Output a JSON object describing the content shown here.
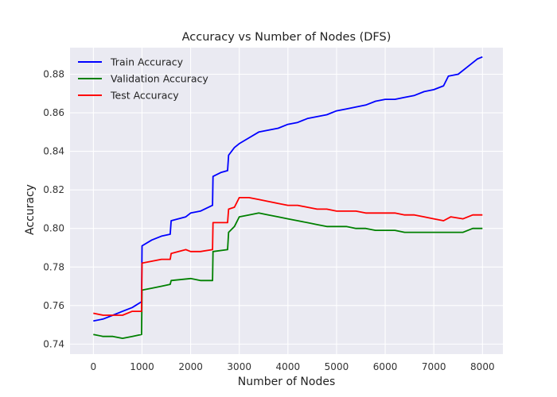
{
  "chart_data": {
    "type": "line",
    "title": "Accuracy vs Number of Nodes (DFS)",
    "xlabel": "Number of Nodes",
    "ylabel": "Accuracy",
    "xlim": [
      -480,
      8420
    ],
    "ylim": [
      0.7348,
      0.8938
    ],
    "xticks": [
      0,
      1000,
      2000,
      3000,
      4000,
      5000,
      6000,
      7000,
      8000
    ],
    "yticks": [
      0.74,
      0.76,
      0.78,
      0.8,
      0.82,
      0.84,
      0.86,
      0.88
    ],
    "ytick_labels": [
      "0.74",
      "0.76",
      "0.78",
      "0.80",
      "0.82",
      "0.84",
      "0.86",
      "0.88"
    ],
    "grid": true,
    "background": "#eaeaf2",
    "legend_position": "top-left",
    "series": [
      {
        "name": "Train Accuracy",
        "color": "#0000ff",
        "points": [
          [
            0,
            0.752
          ],
          [
            200,
            0.753
          ],
          [
            400,
            0.755
          ],
          [
            600,
            0.757
          ],
          [
            800,
            0.759
          ],
          [
            990,
            0.762
          ],
          [
            1000,
            0.791
          ],
          [
            1200,
            0.794
          ],
          [
            1400,
            0.796
          ],
          [
            1580,
            0.797
          ],
          [
            1600,
            0.804
          ],
          [
            1900,
            0.806
          ],
          [
            2000,
            0.808
          ],
          [
            2200,
            0.809
          ],
          [
            2450,
            0.812
          ],
          [
            2460,
            0.827
          ],
          [
            2620,
            0.829
          ],
          [
            2760,
            0.83
          ],
          [
            2780,
            0.838
          ],
          [
            2900,
            0.842
          ],
          [
            3000,
            0.844
          ],
          [
            3200,
            0.847
          ],
          [
            3400,
            0.85
          ],
          [
            3600,
            0.851
          ],
          [
            3800,
            0.852
          ],
          [
            4000,
            0.854
          ],
          [
            4200,
            0.855
          ],
          [
            4400,
            0.857
          ],
          [
            4600,
            0.858
          ],
          [
            4800,
            0.859
          ],
          [
            5000,
            0.861
          ],
          [
            5200,
            0.862
          ],
          [
            5400,
            0.863
          ],
          [
            5600,
            0.864
          ],
          [
            5800,
            0.866
          ],
          [
            6000,
            0.867
          ],
          [
            6200,
            0.867
          ],
          [
            6400,
            0.868
          ],
          [
            6600,
            0.869
          ],
          [
            6800,
            0.871
          ],
          [
            7000,
            0.872
          ],
          [
            7200,
            0.874
          ],
          [
            7300,
            0.879
          ],
          [
            7500,
            0.88
          ],
          [
            7700,
            0.884
          ],
          [
            7900,
            0.888
          ],
          [
            8000,
            0.889
          ]
        ]
      },
      {
        "name": "Validation Accuracy",
        "color": "#008000",
        "points": [
          [
            0,
            0.745
          ],
          [
            200,
            0.744
          ],
          [
            400,
            0.744
          ],
          [
            600,
            0.743
          ],
          [
            800,
            0.744
          ],
          [
            990,
            0.745
          ],
          [
            1000,
            0.768
          ],
          [
            1200,
            0.769
          ],
          [
            1400,
            0.77
          ],
          [
            1580,
            0.771
          ],
          [
            1600,
            0.773
          ],
          [
            2000,
            0.774
          ],
          [
            2200,
            0.773
          ],
          [
            2450,
            0.773
          ],
          [
            2460,
            0.788
          ],
          [
            2760,
            0.789
          ],
          [
            2780,
            0.798
          ],
          [
            2900,
            0.801
          ],
          [
            3000,
            0.806
          ],
          [
            3200,
            0.807
          ],
          [
            3400,
            0.808
          ],
          [
            3600,
            0.807
          ],
          [
            3800,
            0.806
          ],
          [
            4000,
            0.805
          ],
          [
            4200,
            0.804
          ],
          [
            4400,
            0.803
          ],
          [
            4600,
            0.802
          ],
          [
            4800,
            0.801
          ],
          [
            5000,
            0.801
          ],
          [
            5200,
            0.801
          ],
          [
            5400,
            0.8
          ],
          [
            5600,
            0.8
          ],
          [
            5800,
            0.799
          ],
          [
            6000,
            0.799
          ],
          [
            6200,
            0.799
          ],
          [
            6400,
            0.798
          ],
          [
            6600,
            0.798
          ],
          [
            6800,
            0.798
          ],
          [
            7000,
            0.798
          ],
          [
            7200,
            0.798
          ],
          [
            7400,
            0.798
          ],
          [
            7600,
            0.798
          ],
          [
            7800,
            0.8
          ],
          [
            8000,
            0.8
          ]
        ]
      },
      {
        "name": "Test Accuracy",
        "color": "#ff0000",
        "points": [
          [
            0,
            0.756
          ],
          [
            200,
            0.755
          ],
          [
            400,
            0.755
          ],
          [
            600,
            0.755
          ],
          [
            800,
            0.757
          ],
          [
            990,
            0.757
          ],
          [
            1000,
            0.782
          ],
          [
            1200,
            0.783
          ],
          [
            1400,
            0.784
          ],
          [
            1580,
            0.784
          ],
          [
            1600,
            0.787
          ],
          [
            1900,
            0.789
          ],
          [
            2000,
            0.788
          ],
          [
            2200,
            0.788
          ],
          [
            2450,
            0.789
          ],
          [
            2460,
            0.803
          ],
          [
            2760,
            0.803
          ],
          [
            2780,
            0.81
          ],
          [
            2900,
            0.811
          ],
          [
            3000,
            0.816
          ],
          [
            3200,
            0.816
          ],
          [
            3400,
            0.815
          ],
          [
            3600,
            0.814
          ],
          [
            3800,
            0.813
          ],
          [
            4000,
            0.812
          ],
          [
            4200,
            0.812
          ],
          [
            4400,
            0.811
          ],
          [
            4600,
            0.81
          ],
          [
            4800,
            0.81
          ],
          [
            5000,
            0.809
          ],
          [
            5200,
            0.809
          ],
          [
            5400,
            0.809
          ],
          [
            5600,
            0.808
          ],
          [
            5800,
            0.808
          ],
          [
            6000,
            0.808
          ],
          [
            6200,
            0.808
          ],
          [
            6400,
            0.807
          ],
          [
            6600,
            0.807
          ],
          [
            6800,
            0.806
          ],
          [
            7000,
            0.805
          ],
          [
            7200,
            0.804
          ],
          [
            7350,
            0.806
          ],
          [
            7600,
            0.805
          ],
          [
            7800,
            0.807
          ],
          [
            8000,
            0.807
          ]
        ]
      }
    ]
  }
}
